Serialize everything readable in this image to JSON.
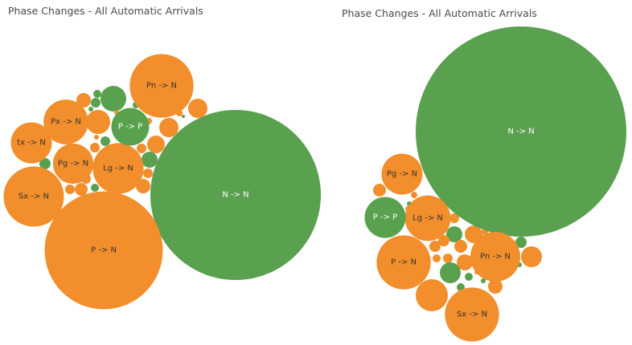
{
  "colors": {
    "orange": "#f28e2b",
    "green": "#59a14f",
    "label_dark": "#333333",
    "label_light": "#ffffff"
  },
  "chart_data": [
    {
      "type": "packed-bubble",
      "title": "Phase Changes - All Automatic Arrivals",
      "bubbles": [
        {
          "label": "N -> N",
          "color": "green",
          "size": 100
        },
        {
          "label": "P -> N",
          "color": "orange",
          "size": 48
        },
        {
          "label": "Pn -> N",
          "color": "orange",
          "size": 14
        },
        {
          "label": "Sx -> N",
          "color": "orange",
          "size": 12.5
        },
        {
          "label": "Lg -> N",
          "color": "orange",
          "size": 8.9
        },
        {
          "label": "Px -> N",
          "color": "orange",
          "size": 6.9
        },
        {
          "label": "tx -> N",
          "color": "orange",
          "size": 5.8
        },
        {
          "label": "Pg -> N",
          "color": "orange",
          "size": 5.6
        },
        {
          "label": "P -> P",
          "color": "green",
          "size": 4.9
        }
      ]
    },
    {
      "type": "packed-bubble",
      "title": "Phase Changes - All Automatic Arrivals",
      "bubbles": [
        {
          "label": "N -> N",
          "color": "green",
          "size": 100
        },
        {
          "label": "P -> N",
          "color": "orange",
          "size": 6.6
        },
        {
          "label": "Sx -> N",
          "color": "orange",
          "size": 6.6
        },
        {
          "label": "Pn -> N",
          "color": "orange",
          "size": 5.6
        },
        {
          "label": "Lg -> N",
          "color": "orange",
          "size": 4.7
        },
        {
          "label": "Pg -> N",
          "color": "orange",
          "size": 3.8
        },
        {
          "label": "P -> P",
          "color": "green",
          "size": 3.8
        }
      ]
    }
  ]
}
